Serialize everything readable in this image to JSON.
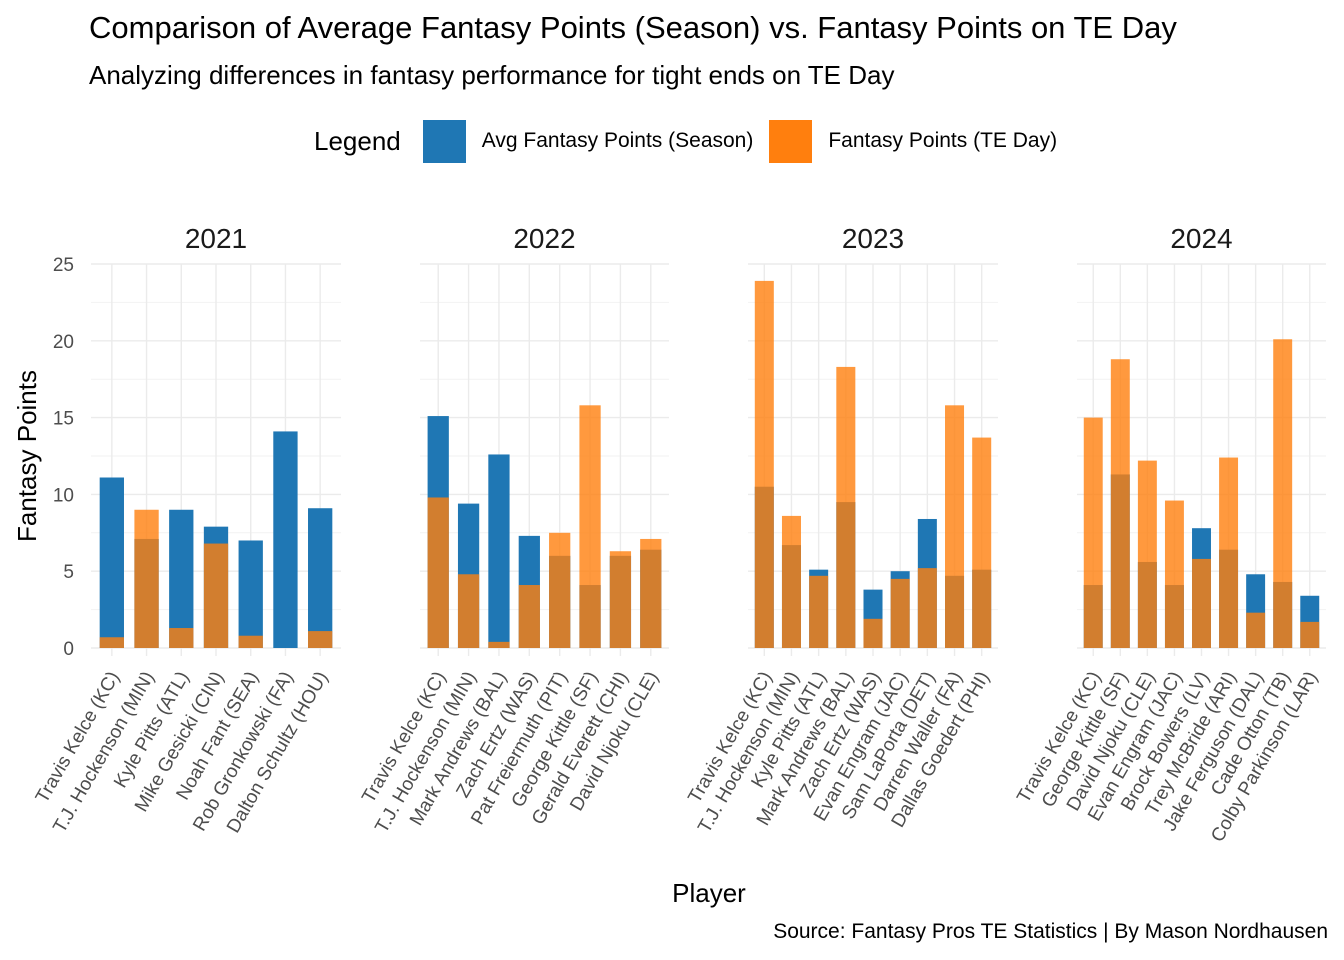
{
  "title": "Comparison of Average Fantasy Points (Season) vs. Fantasy Points on TE Day",
  "subtitle": "Analyzing differences in fantasy performance for tight ends on TE Day",
  "caption": "Source: Fantasy Pros TE Statistics | By Mason Nordhausen",
  "legend": {
    "title": "Legend",
    "items": [
      {
        "label": "Avg Fantasy Points (Season)",
        "color": "#1f77b4"
      },
      {
        "label": "Fantasy Points (TE Day)",
        "color": "#ff7f0e"
      }
    ]
  },
  "chart_data": {
    "type": "bar",
    "overlay": true,
    "xlabel": "Player",
    "ylabel": "Fantasy Points",
    "ylim": [
      0,
      25
    ],
    "yticks": [
      0,
      5,
      10,
      15,
      20,
      25
    ],
    "grid": true,
    "legend_position": "top",
    "panels": [
      {
        "title": "2021",
        "categories": [
          "Travis Kelce (KC)",
          "T.J. Hockenson (MIN)",
          "Kyle Pitts (ATL)",
          "Mike Gesicki (CIN)",
          "Noah Fant (SEA)",
          "Rob Gronkowski (FA)",
          "Dalton Schultz (HOU)"
        ],
        "series": [
          {
            "name": "Avg Fantasy Points (Season)",
            "values": [
              11.1,
              7.1,
              9.0,
              7.9,
              7.0,
              14.1,
              9.1
            ]
          },
          {
            "name": "Fantasy Points (TE Day)",
            "values": [
              0.7,
              9.0,
              1.3,
              6.8,
              0.8,
              0.0,
              1.1
            ]
          }
        ]
      },
      {
        "title": "2022",
        "categories": [
          "Travis Kelce (KC)",
          "T.J. Hockenson (MIN)",
          "Mark Andrews (BAL)",
          "Zach Ertz (WAS)",
          "Pat Freiermuth (PIT)",
          "George Kittle (SF)",
          "Gerald Everett (CHI)",
          "David Njoku (CLE)"
        ],
        "series": [
          {
            "name": "Avg Fantasy Points (Season)",
            "values": [
              15.1,
              9.4,
              12.6,
              7.3,
              6.0,
              4.1,
              6.0,
              6.4
            ]
          },
          {
            "name": "Fantasy Points (TE Day)",
            "values": [
              9.8,
              4.8,
              0.4,
              4.1,
              7.5,
              15.8,
              6.3,
              7.1
            ]
          }
        ]
      },
      {
        "title": "2023",
        "categories": [
          "Travis Kelce (KC)",
          "T.J. Hockenson (MIN)",
          "Kyle Pitts (ATL)",
          "Mark Andrews (BAL)",
          "Zach Ertz (WAS)",
          "Evan Engram (JAC)",
          "Sam LaPorta (DET)",
          "Darren Waller (FA)",
          "Dallas Goedert (PHI)"
        ],
        "series": [
          {
            "name": "Avg Fantasy Points (Season)",
            "values": [
              10.5,
              6.7,
              5.1,
              9.5,
              3.8,
              5.0,
              8.4,
              4.7,
              5.1
            ]
          },
          {
            "name": "Fantasy Points (TE Day)",
            "values": [
              23.9,
              8.6,
              4.7,
              18.3,
              1.9,
              4.5,
              5.2,
              15.8,
              13.7
            ]
          }
        ]
      },
      {
        "title": "2024",
        "categories": [
          "Travis Kelce (KC)",
          "George Kittle (SF)",
          "David Njoku (CLE)",
          "Evan Engram (JAC)",
          "Brock Bowers (LV)",
          "Trey McBride (ARI)",
          "Jake Ferguson (DAL)",
          "Cade Otton (TB)",
          "Colby Parkinson (LAR)"
        ],
        "series": [
          {
            "name": "Avg Fantasy Points (Season)",
            "values": [
              4.1,
              11.3,
              5.6,
              4.1,
              7.8,
              6.4,
              4.8,
              4.3,
              3.4
            ]
          },
          {
            "name": "Fantasy Points (TE Day)",
            "values": [
              15.0,
              18.8,
              12.2,
              9.6,
              5.8,
              12.4,
              2.3,
              20.1,
              1.7
            ]
          }
        ]
      }
    ]
  }
}
